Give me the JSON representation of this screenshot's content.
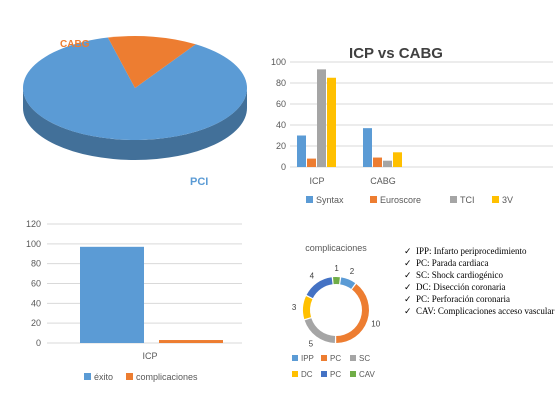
{
  "chart_data": [
    {
      "type": "pie",
      "style": "3d",
      "labels": [
        "PCI",
        "CABG"
      ],
      "values": [
        87,
        13
      ],
      "colors": [
        "#5b9bd5",
        "#ed7d31"
      ]
    },
    {
      "type": "bar",
      "title": "ICP vs CABG",
      "categories": [
        "ICP",
        "CABG"
      ],
      "ylim": [
        0,
        100
      ],
      "yticks": [
        0,
        20,
        40,
        60,
        80,
        100
      ],
      "grid": true,
      "legend_position": "bottom",
      "series": [
        {
          "name": "Syntax",
          "color": "#5b9bd5",
          "values": [
            30,
            37
          ]
        },
        {
          "name": "Euroscore",
          "color": "#ed7d31",
          "values": [
            8,
            9
          ]
        },
        {
          "name": "TCI",
          "color": "#a5a5a5",
          "values": [
            93,
            6
          ]
        },
        {
          "name": "3V",
          "color": "#ffc000",
          "values": [
            85,
            14
          ]
        }
      ]
    },
    {
      "type": "bar",
      "categories": [
        "ICP"
      ],
      "ylim": [
        0,
        120
      ],
      "yticks": [
        0,
        20,
        40,
        60,
        80,
        100,
        120
      ],
      "grid": true,
      "legend_position": "bottom",
      "series": [
        {
          "name": "éxito",
          "color": "#5b9bd5",
          "values": [
            97
          ]
        },
        {
          "name": "complicaciones",
          "color": "#ed7d31",
          "values": [
            3
          ]
        }
      ]
    },
    {
      "type": "pie",
      "style": "doughnut",
      "title": "complicaciones",
      "labels": [
        "IPP",
        "PC",
        "SC",
        "DC",
        "PC",
        "CAV"
      ],
      "values": [
        2,
        10,
        5,
        3,
        4,
        1
      ],
      "colors": [
        "#5b9bd5",
        "#ed7d31",
        "#a5a5a5",
        "#ffc000",
        "#4472c4",
        "#70ad47"
      ],
      "legend_position": "bottom"
    }
  ],
  "notes": [
    "IPP: Infarto periprocedimiento",
    "PC: Parada cardiaca",
    "SC: Shock cardiogénico",
    "DC: Disección coronaria",
    "PC: Perforación coronaria",
    "CAV:  Complicaciones acceso vascular"
  ],
  "note_marker": "✓"
}
